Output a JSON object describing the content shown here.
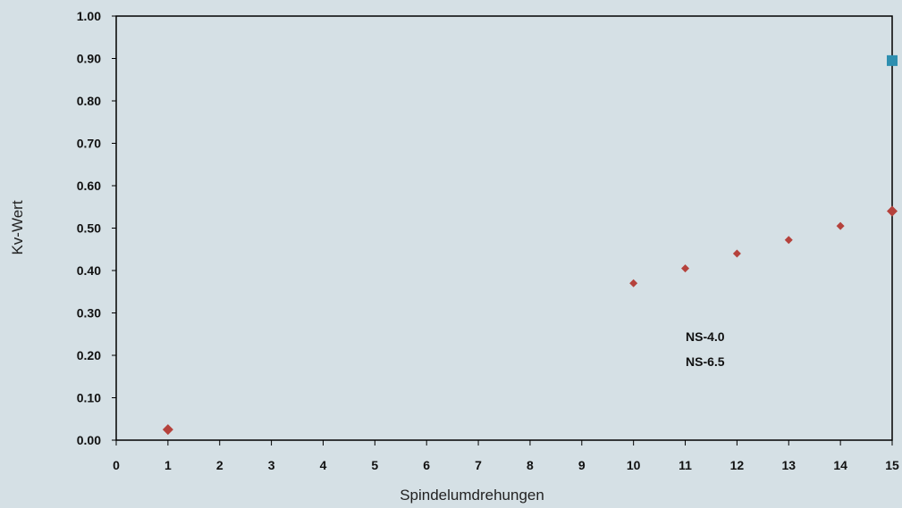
{
  "chart_data": {
    "type": "scatter",
    "title": "",
    "xlabel": "Spindelumdrehungen",
    "ylabel": "Kv-Wert",
    "xlim": [
      0,
      15
    ],
    "ylim": [
      0,
      1
    ],
    "x_ticks": [
      "0",
      "1",
      "2",
      "3",
      "4",
      "5",
      "6",
      "7",
      "8",
      "9",
      "10",
      "11",
      "12",
      "13",
      "14",
      "15"
    ],
    "y_ticks": [
      "0.00",
      "0.10",
      "0.20",
      "0.30",
      "0.40",
      "0.50",
      "0.60",
      "0.70",
      "0.80",
      "0.90",
      "1.00"
    ],
    "grid": false,
    "legend_position": "center-right",
    "legend": [
      "NS-4.0",
      "NS-6.5"
    ],
    "series": [
      {
        "name": "",
        "color": "#b5423c",
        "marker": "diamond",
        "points": [
          {
            "x": 1,
            "y": 0.025
          },
          {
            "x": 10,
            "y": 0.37
          },
          {
            "x": 11,
            "y": 0.405
          },
          {
            "x": 12,
            "y": 0.44
          },
          {
            "x": 13,
            "y": 0.472
          },
          {
            "x": 14,
            "y": 0.505
          },
          {
            "x": 15,
            "y": 0.54
          }
        ]
      },
      {
        "name": "",
        "color": "#2e8fb0",
        "marker": "square",
        "points": [
          {
            "x": 15,
            "y": 0.895
          }
        ]
      }
    ]
  }
}
